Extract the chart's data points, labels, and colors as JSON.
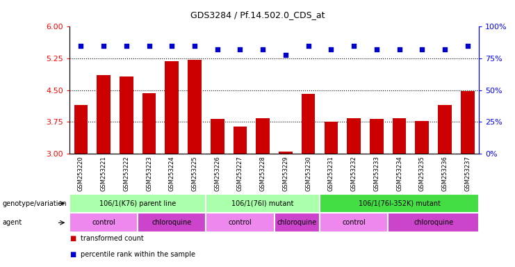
{
  "title": "GDS3284 / Pf.14.502.0_CDS_at",
  "samples": [
    "GSM253220",
    "GSM253221",
    "GSM253222",
    "GSM253223",
    "GSM253224",
    "GSM253225",
    "GSM253226",
    "GSM253227",
    "GSM253228",
    "GSM253229",
    "GSM253230",
    "GSM253231",
    "GSM253232",
    "GSM253233",
    "GSM253234",
    "GSM253235",
    "GSM253236",
    "GSM253237"
  ],
  "bar_values": [
    4.15,
    4.85,
    4.82,
    4.43,
    5.18,
    5.22,
    3.82,
    3.65,
    3.84,
    3.06,
    4.42,
    3.75,
    3.84,
    3.82,
    3.84,
    3.78,
    4.15,
    4.48
  ],
  "dot_values": [
    85,
    85,
    85,
    85,
    85,
    85,
    82,
    82,
    82,
    78,
    85,
    82,
    85,
    82,
    82,
    82,
    82,
    85
  ],
  "bar_color": "#cc0000",
  "dot_color": "#0000cc",
  "ylim_left": [
    3,
    6
  ],
  "ylim_right": [
    0,
    100
  ],
  "yticks_left": [
    3,
    3.75,
    4.5,
    5.25,
    6
  ],
  "yticks_right": [
    0,
    25,
    50,
    75,
    100
  ],
  "grid_lines": [
    3.75,
    4.5,
    5.25
  ],
  "genotype_groups": [
    {
      "label": "106/1(K76) parent line",
      "start": 0,
      "end": 5,
      "color": "#aaffaa"
    },
    {
      "label": "106/1(76I) mutant",
      "start": 6,
      "end": 10,
      "color": "#aaffaa"
    },
    {
      "label": "106/1(76I-352K) mutant",
      "start": 11,
      "end": 17,
      "color": "#44dd44"
    }
  ],
  "agent_groups": [
    {
      "label": "control",
      "start": 0,
      "end": 2,
      "color": "#ee88ee"
    },
    {
      "label": "chloroquine",
      "start": 3,
      "end": 5,
      "color": "#cc44cc"
    },
    {
      "label": "control",
      "start": 6,
      "end": 8,
      "color": "#ee88ee"
    },
    {
      "label": "chloroquine",
      "start": 9,
      "end": 10,
      "color": "#cc44cc"
    },
    {
      "label": "control",
      "start": 11,
      "end": 13,
      "color": "#ee88ee"
    },
    {
      "label": "chloroquine",
      "start": 14,
      "end": 17,
      "color": "#cc44cc"
    }
  ],
  "legend_items": [
    {
      "color": "#cc0000",
      "label": "transformed count"
    },
    {
      "color": "#0000cc",
      "label": "percentile rank within the sample"
    }
  ],
  "label_genotype": "genotype/variation",
  "label_agent": "agent",
  "background_color": "#ffffff",
  "xtick_bg": "#dddddd"
}
